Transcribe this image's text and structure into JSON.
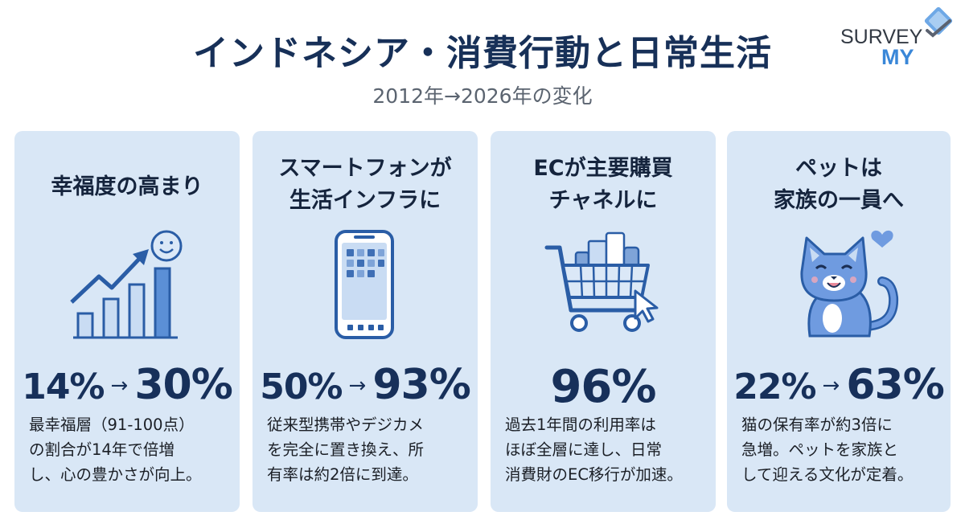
{
  "header": {
    "title": "インドネシア・消費行動と日常生活",
    "subtitle": "2012年→2026年の変化",
    "logo_line1": "SURVEY",
    "logo_line2": "MY"
  },
  "colors": {
    "card_bg": "#d9e7f6",
    "title": "#173058",
    "icon_blue": "#3f78c4",
    "logo_accent": "#3a87d8"
  },
  "cards": [
    {
      "heading": "幸福度の高まり",
      "icon": "growth-chart-smiley-icon",
      "from": "14%",
      "arrow": "→",
      "to": "30%",
      "desc": [
        "最幸福層（91-100点）",
        "の割合が14年で倍増",
        "し、心の豊かさが向上。"
      ]
    },
    {
      "heading": [
        "スマートフォンが",
        "生活インフラに"
      ],
      "icon": "smartphone-icon",
      "from": "50%",
      "arrow": "→",
      "to": "93%",
      "desc": [
        "従来型携帯やデジカメ",
        "を完全に置き換え、所",
        "有率は約2倍に到達。"
      ]
    },
    {
      "heading": [
        "ECが主要購買",
        "チャネルに"
      ],
      "icon": "shopping-cart-icon",
      "value": "96%",
      "desc": [
        "過去1年間の利用率は",
        "ほぼ全層に達し、日常",
        "消費財のEC移行が加速。"
      ]
    },
    {
      "heading": [
        "ペットは",
        "家族の一員へ"
      ],
      "icon": "cat-heart-icon",
      "from": "22%",
      "arrow": "→",
      "to": "63%",
      "desc": [
        "猫の保有率が約3倍に",
        "急増。ペットを家族と",
        "して迎える文化が定着。"
      ]
    }
  ]
}
